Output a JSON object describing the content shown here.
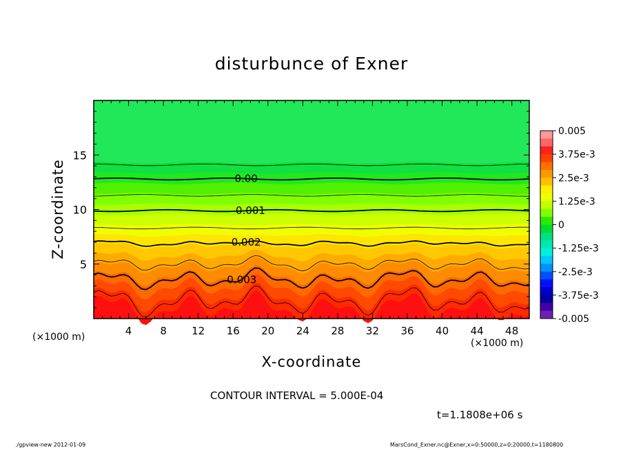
{
  "chart_data": {
    "type": "heatmap",
    "title": "disturbunce of Exner",
    "xlabel": "X-coordinate",
    "ylabel": "Z-coordinate",
    "x_unit_left": "(×1000 m)",
    "x_unit_right": "(×1000 m)",
    "xlim": [
      0,
      50
    ],
    "ylim": [
      0,
      20
    ],
    "x_ticks": [
      4,
      8,
      12,
      16,
      20,
      24,
      28,
      32,
      36,
      40,
      44,
      48
    ],
    "x_tick_labels": [
      "4",
      "8",
      "12",
      "16",
      "20",
      "24",
      "28",
      "32",
      "36",
      "40",
      "44",
      "48"
    ],
    "y_ticks": [
      5,
      10,
      15
    ],
    "y_tick_labels": [
      "5",
      "10",
      "15"
    ],
    "contour_interval_text": "CONTOUR INTERVAL = 5.000E-04",
    "contour_levels_labeled": [
      {
        "label": "0.00",
        "value": 0.0,
        "z": 12.8,
        "x": 17.5
      },
      {
        "label": "0.001",
        "value": 0.001,
        "z": 9.9,
        "x": 18
      },
      {
        "label": "0.002",
        "value": 0.002,
        "z": 6.9,
        "x": 17.5
      },
      {
        "label": "0.003",
        "value": 0.003,
        "z": 3.6,
        "x": 17
      }
    ],
    "contour_levels_unlabeled_z": [
      14.1,
      11.3,
      8.3,
      5.0,
      1.6
    ],
    "colorbar": {
      "min": -0.005,
      "max": 0.005,
      "tick_labels": [
        "0.005",
        "3.75e-3",
        "2.5e-3",
        "1.25e-3",
        "0",
        "-1.25e-3",
        "-2.5e-3",
        "-3.75e-3",
        "-0.005"
      ],
      "colors": [
        "#ff9999",
        "#ff6666",
        "#ff2020",
        "#ff4000",
        "#ff7000",
        "#ff9900",
        "#ffc000",
        "#ffee00",
        "#eeff00",
        "#c0ff00",
        "#80ff00",
        "#30e800",
        "#00dd30",
        "#00e080",
        "#00e8b0",
        "#00f0e0",
        "#00c8ff",
        "#0090ff",
        "#0050ff",
        "#0010ff",
        "#0000d0",
        "#0000a0",
        "#4400aa",
        "#7020b0"
      ]
    },
    "field_colors": [
      "#ff1010",
      "#ff2a00",
      "#ff4a00",
      "#ff6a00",
      "#ff8c00",
      "#ffaa00",
      "#ffc800",
      "#ffe600",
      "#f0ff00",
      "#ccff00",
      "#a8ff00",
      "#80ff00",
      "#50f000",
      "#20e820",
      "#10e040",
      "#20e858"
    ]
  },
  "time_label": "t=1.1808e+06 s",
  "footer_left": "./gpview-new   2012-01-09",
  "footer_right": "MarsCond_Exner.nc@Exner,x=0:50000,z=0:20000,t=1180800"
}
